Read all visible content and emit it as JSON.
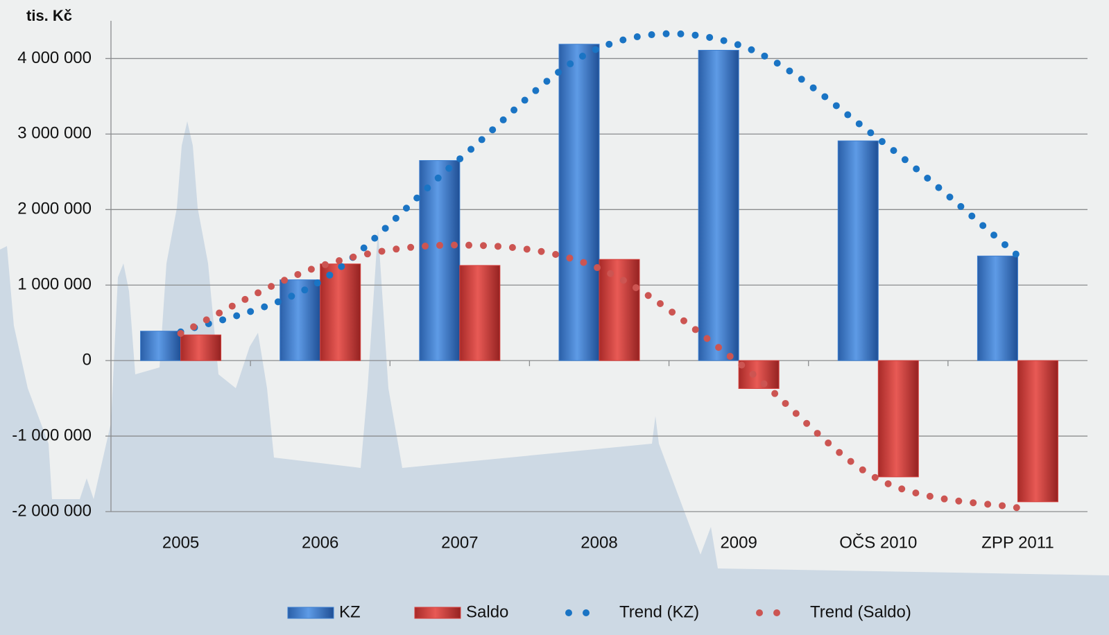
{
  "chart_data": {
    "type": "bar",
    "y_label": "tis. Kč",
    "categories": [
      "2005",
      "2006",
      "2007",
      "2008",
      "2009",
      "OČS 2010",
      "ZPP 2011"
    ],
    "series": [
      {
        "name": "KZ",
        "color": "#3d7fd0",
        "values": [
          390000,
          1070000,
          2650000,
          4190000,
          4110000,
          2910000,
          1385000
        ]
      },
      {
        "name": "Saldo",
        "color": "#d63f3c",
        "values": [
          340000,
          1280000,
          1260000,
          1340000,
          -370000,
          -1540000,
          -1870000
        ]
      },
      {
        "name": "Trend (KZ)",
        "type": "trend",
        "color": "#1a74c4",
        "values": [
          380000,
          1050000,
          2670000,
          4140000,
          4180000,
          2940000,
          1390000
        ]
      },
      {
        "name": "Trend (Saldo)",
        "type": "trend",
        "color": "#cc5552",
        "values": [
          360000,
          1250000,
          1530000,
          1220000,
          -30000,
          -1570000,
          -1950000
        ]
      }
    ],
    "ylim": [
      -2000000,
      4500000
    ],
    "yticks": [
      {
        "value": -2000000,
        "label": "-2 000 000"
      },
      {
        "value": -1000000,
        "label": "-1 000 000"
      },
      0,
      {
        "value": 1000000,
        "label": "1 000 000"
      },
      {
        "value": 2000000,
        "label": "2 000 000"
      },
      {
        "value": 3000000,
        "label": "3 000 000"
      },
      {
        "value": 4000000,
        "label": "4 000 000"
      }
    ],
    "grid": true,
    "legend": "bottom"
  }
}
